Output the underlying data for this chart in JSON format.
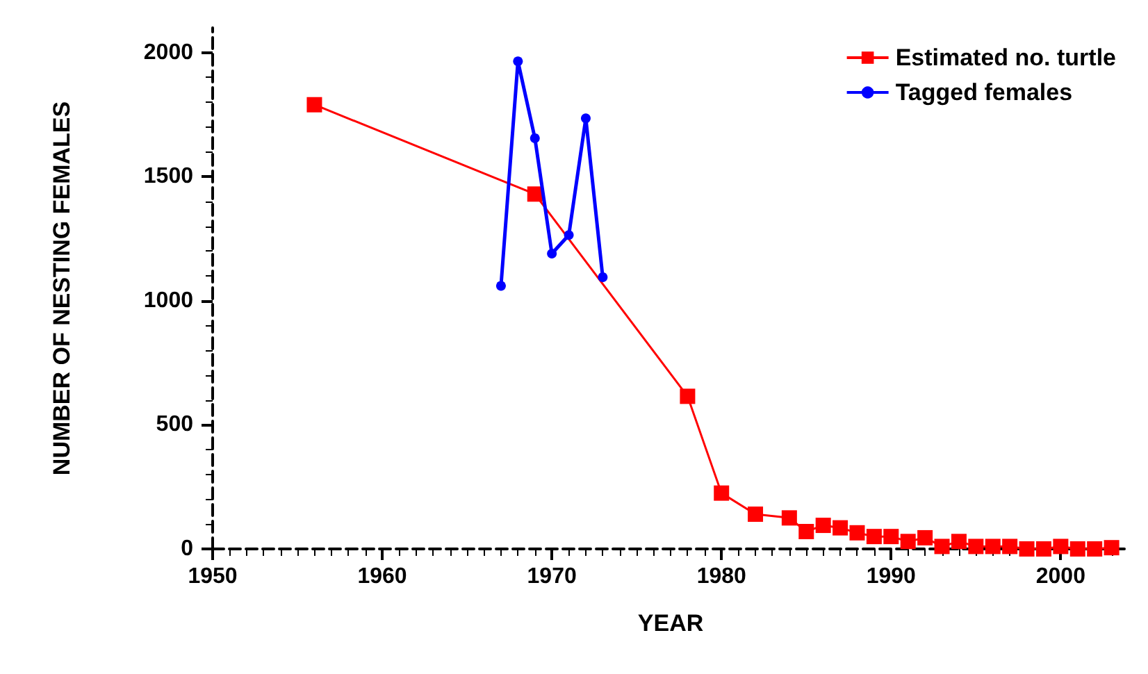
{
  "chart_data": {
    "type": "line",
    "xlabel": "YEAR",
    "ylabel": "NUMBER OF NESTING FEMALES",
    "xlim": [
      1950,
      2004
    ],
    "xticks": [
      1950,
      1960,
      1970,
      1980,
      1990,
      2000
    ],
    "ylim": [
      0,
      2100
    ],
    "yticks": [
      0,
      500,
      1000,
      1500,
      2000
    ],
    "grid": false,
    "legend": "top right",
    "series": [
      {
        "name": "Estimated no. turtle",
        "color": "#ff0000",
        "marker": "square",
        "x": [
          1956,
          1969,
          1978,
          1980,
          1982,
          1984,
          1985,
          1986,
          1987,
          1988,
          1989,
          1990,
          1991,
          1992,
          1993,
          1994,
          1995,
          1996,
          1997,
          1998,
          1999,
          2000,
          2001,
          2002,
          2003
        ],
        "values": [
          1790,
          1430,
          615,
          225,
          140,
          125,
          70,
          95,
          85,
          65,
          50,
          50,
          30,
          45,
          10,
          30,
          10,
          10,
          10,
          0,
          0,
          10,
          0,
          0,
          5
        ]
      },
      {
        "name": "Tagged females",
        "color": "#0000ff",
        "marker": "circle",
        "x": [
          1967,
          1968,
          1969,
          1970,
          1971,
          1972,
          1973
        ],
        "values": [
          1060,
          1965,
          1655,
          1190,
          1265,
          1735,
          1095
        ]
      }
    ]
  }
}
